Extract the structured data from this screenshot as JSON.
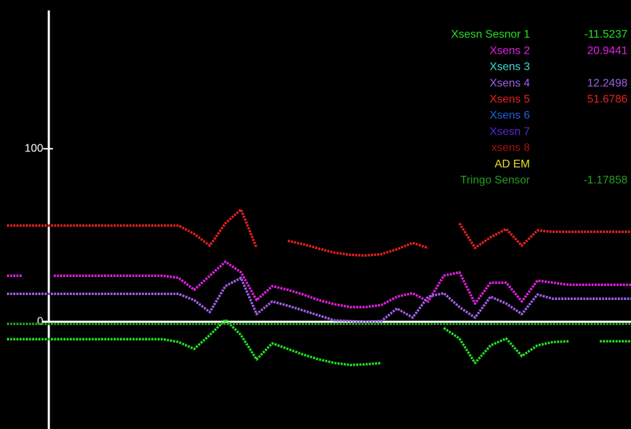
{
  "chart_data": {
    "type": "line",
    "x": [
      0,
      1,
      2,
      3,
      4,
      5,
      6,
      7,
      8,
      9,
      10,
      11,
      12,
      13,
      14,
      15,
      16,
      17,
      18,
      19,
      20,
      21,
      22,
      23,
      24,
      25,
      26,
      27,
      28,
      29,
      30,
      31,
      32,
      33,
      34,
      35,
      36,
      37,
      38,
      39,
      40
    ],
    "xlim": [
      0,
      40
    ],
    "ylim": [
      -62,
      186
    ],
    "yticks": [
      0,
      100
    ],
    "background": "#000000",
    "series": [
      {
        "name": "Xsesn Sesnor 1",
        "color": "#22e022",
        "reading": -11.5237,
        "values": [
          -10.1,
          -10.1,
          -10.1,
          -10.1,
          -10.1,
          -10.1,
          -10.1,
          -10.1,
          -10.1,
          -10.1,
          -10.1,
          -11.7,
          -15.7,
          -7.7,
          1.2,
          -7.7,
          -21.8,
          -12.5,
          -15.7,
          -19.0,
          -21.8,
          -23.8,
          -25.0,
          -24.6,
          -23.8,
          null,
          -20.6,
          null,
          -3.6,
          -9.7,
          -23.8,
          -13.7,
          -9.7,
          -19.8,
          -13.7,
          -11.7,
          -11.3,
          null,
          -11.3,
          -11.3,
          -11.3
        ]
      },
      {
        "name": "Xsens 2",
        "color": "#e020e0",
        "reading": 20.9441,
        "values": [
          26.6,
          26.6,
          null,
          26.6,
          26.6,
          26.6,
          26.6,
          26.6,
          26.6,
          26.6,
          26.6,
          25.4,
          18.5,
          26.6,
          34.7,
          28.6,
          12.5,
          20.6,
          18.5,
          15.7,
          12.5,
          10.1,
          8.5,
          8.5,
          9.7,
          14.5,
          16.5,
          11.7,
          26.6,
          28.6,
          10.5,
          22.6,
          22.6,
          11.7,
          23.8,
          22.6,
          21.4,
          21.4,
          21.4,
          21.4,
          21.4
        ]
      },
      {
        "name": "Xsens 3",
        "color": "#40d8d8",
        "values": [
          null,
          null,
          null,
          null,
          null,
          null,
          null,
          null,
          null,
          null,
          null,
          null,
          null,
          null,
          null,
          null,
          null,
          null,
          null,
          null,
          null,
          null,
          null,
          null,
          null,
          null,
          null,
          null,
          null,
          null,
          null,
          null,
          null,
          null,
          null,
          null,
          null,
          null,
          null,
          null,
          null
        ]
      },
      {
        "name": "Xsens 4",
        "color": "#a060e8",
        "reading": 12.2498,
        "values": [
          16.1,
          16.1,
          16.1,
          16.1,
          16.1,
          16.1,
          16.1,
          16.1,
          16.1,
          16.1,
          16.1,
          16.1,
          12.5,
          5.6,
          20.6,
          25.4,
          4.4,
          11.7,
          9.3,
          6.5,
          3.6,
          0.8,
          0.4,
          0,
          0.4,
          7.7,
          2.4,
          14.5,
          16.5,
          8.5,
          2.4,
          14.5,
          10.5,
          4.4,
          15.7,
          13.3,
          13.3,
          13.3,
          13.3,
          13.3,
          13.3
        ]
      },
      {
        "name": "Xsens 5",
        "color": "#e82020",
        "reading": 51.6786,
        "values": [
          55.6,
          55.6,
          55.6,
          55.6,
          55.6,
          55.6,
          55.6,
          55.6,
          55.6,
          55.6,
          55.6,
          55.6,
          50.8,
          44.0,
          56.9,
          64.9,
          42.7,
          null,
          46.8,
          44.8,
          42.3,
          39.9,
          38.7,
          38.3,
          39.1,
          41.9,
          45.6,
          42.7,
          null,
          56.9,
          42.7,
          48.8,
          53.6,
          44.0,
          52.8,
          52.0,
          52.0,
          52.0,
          52.0,
          52.0,
          52.0
        ]
      },
      {
        "name": "Xsens 6",
        "color": "#2060e0",
        "values": [
          null,
          null,
          null,
          null,
          null,
          null,
          null,
          null,
          null,
          null,
          null,
          null,
          null,
          null,
          null,
          null,
          null,
          null,
          null,
          null,
          null,
          null,
          null,
          null,
          null,
          null,
          null,
          null,
          null,
          null,
          null,
          null,
          null,
          null,
          null,
          null,
          null,
          null,
          null,
          null,
          null
        ]
      },
      {
        "name": "Xsesn 7",
        "color": "#5a28d0",
        "values": [
          null,
          null,
          null,
          null,
          null,
          null,
          null,
          null,
          null,
          null,
          null,
          null,
          null,
          null,
          null,
          null,
          null,
          null,
          null,
          null,
          null,
          null,
          null,
          null,
          null,
          null,
          null,
          null,
          null,
          null,
          null,
          null,
          null,
          null,
          null,
          null,
          null,
          null,
          null,
          null,
          null
        ]
      },
      {
        "name": "xsens 8",
        "color": "#a81010",
        "values": [
          null,
          null,
          null,
          null,
          null,
          null,
          null,
          null,
          null,
          null,
          null,
          null,
          null,
          null,
          null,
          null,
          null,
          null,
          null,
          null,
          null,
          null,
          null,
          null,
          null,
          null,
          null,
          null,
          null,
          null,
          null,
          null,
          null,
          null,
          null,
          null,
          null,
          null,
          null,
          null,
          null
        ]
      },
      {
        "name": "AD EM",
        "color": "#e8e020",
        "values": [
          null,
          null,
          null,
          null,
          null,
          null,
          null,
          null,
          null,
          null,
          null,
          null,
          null,
          null,
          null,
          null,
          null,
          null,
          null,
          null,
          null,
          null,
          null,
          null,
          null,
          null,
          null,
          null,
          null,
          null,
          null,
          null,
          null,
          null,
          null,
          null,
          null,
          null,
          null,
          null,
          null
        ]
      },
      {
        "name": "Tringo Sensor",
        "color": "#20a020",
        "reading": -1.17858,
        "values": [
          -1.2,
          -1.2,
          -1.2,
          -1.2,
          -1.2,
          -1.2,
          -1.2,
          -1.2,
          -1.2,
          -1.2,
          -1.2,
          -1.2,
          -1.2,
          -1.2,
          -1.2,
          -1.2,
          -1.2,
          -1.2,
          -1.2,
          -1.2,
          -1.2,
          -1.2,
          -1.2,
          -1.2,
          -1.2,
          -1.2,
          -1.2,
          -1.2,
          -1.2,
          -1.2,
          -1.2,
          -1.2,
          -1.2,
          -1.2,
          -1.2,
          -1.2,
          -1.2,
          -1.2,
          -1.2,
          -1.2,
          -1.2
        ]
      }
    ]
  }
}
